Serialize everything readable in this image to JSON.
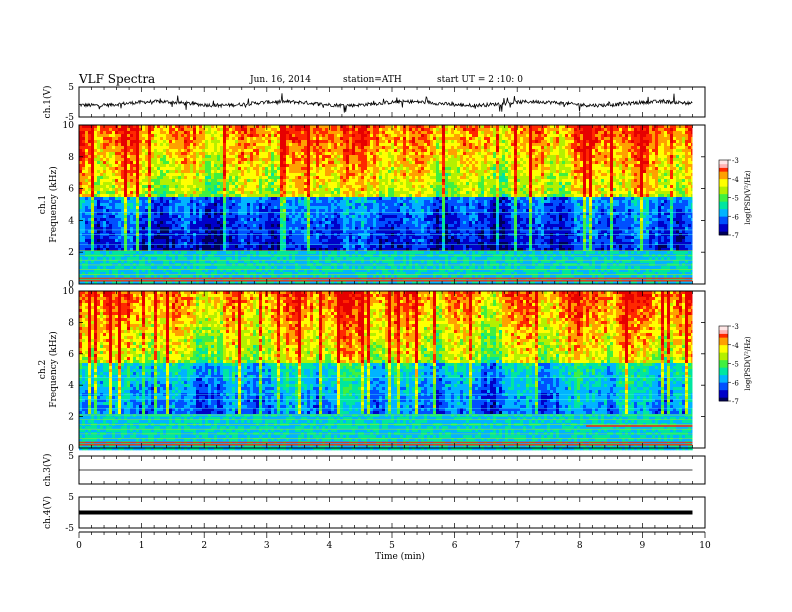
{
  "header": {
    "title": "VLF  Spectra",
    "date": "Jun. 16, 2014",
    "station": "station=ATH",
    "start": "start  UT  =   2  :10: 0"
  },
  "colors": {
    "spectrogram_scale": [
      "#00005a",
      "#0000c8",
      "#0050ff",
      "#00b4ff",
      "#00e6a0",
      "#40f040",
      "#b4f000",
      "#ffff00",
      "#ffa000",
      "#ff2800",
      "#e60000"
    ],
    "trace": "#000000"
  },
  "chart_data": [
    {
      "type": "line",
      "panel": "ch1-voltage",
      "ylabel": "ch.1(V)",
      "ylim": [
        -5,
        5
      ],
      "yticks": [
        "5",
        "-5"
      ],
      "x_range_min": [
        0,
        9.8
      ],
      "series": [
        {
          "values_summary": "noisy trace around -0.5 V"
        }
      ]
    },
    {
      "type": "heatmap",
      "panel": "ch1-spectrogram",
      "ylabel": "ch.1",
      "ylabel2": "Frequency  (kHz)",
      "ylim": [
        0,
        10
      ],
      "yticks": [
        "0",
        "2",
        "4",
        "6",
        "8",
        "10"
      ],
      "colorbar": {
        "label": "log(PSD(V²/Hz)",
        "range": [
          -7,
          -3
        ],
        "ticks": [
          "-3",
          "-4",
          "-5",
          "-6",
          "-7"
        ]
      }
    },
    {
      "type": "heatmap",
      "panel": "ch2-spectrogram",
      "ylabel": "ch.2",
      "ylabel2": "Frequency  (kHz)",
      "ylim": [
        0,
        10
      ],
      "yticks": [
        "0",
        "2",
        "4",
        "6",
        "8",
        "10"
      ],
      "colorbar": {
        "label": "log(PSD(V²/Hz)",
        "range": [
          -7,
          -3
        ],
        "ticks": [
          "-3",
          "-4",
          "-5",
          "-6",
          "-7"
        ]
      }
    },
    {
      "type": "line",
      "panel": "ch3-voltage",
      "ylabel": "ch.3(V)",
      "ylim": [
        -5,
        5
      ],
      "yticks": [
        "5"
      ],
      "series": [
        {
          "values_summary": "flat trace near 0 V"
        }
      ]
    },
    {
      "type": "line",
      "panel": "ch4-voltage",
      "ylabel": "ch.4(V)",
      "ylim": [
        -5,
        5
      ],
      "yticks": [
        "5",
        "-5"
      ],
      "series": [
        {
          "values_summary": "thick flat trace near 0 V"
        }
      ]
    }
  ],
  "xaxis": {
    "label": "Time  (min)",
    "range": [
      0,
      10
    ],
    "ticks": [
      "0",
      "1",
      "2",
      "3",
      "4",
      "5",
      "6",
      "7",
      "8",
      "9",
      "10"
    ]
  }
}
